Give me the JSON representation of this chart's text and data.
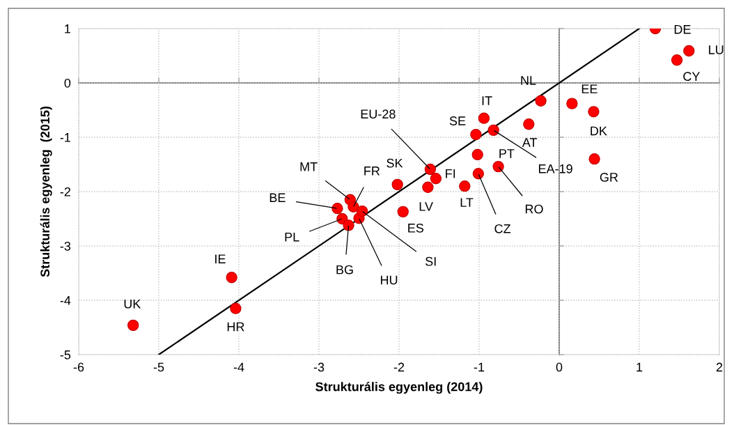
{
  "chart_data": {
    "type": "scatter",
    "xlabel": "Strukturális egyenleg (2014)",
    "ylabel": "Strukturális egyenleg  (2015)",
    "xlim": [
      -6,
      2
    ],
    "ylim": [
      -5,
      1
    ],
    "xticks": [
      -6,
      -5,
      -4,
      -3,
      -2,
      -1,
      0,
      1,
      2
    ],
    "yticks": [
      -5,
      -4,
      -3,
      -2,
      -1,
      0,
      1
    ],
    "grid": true,
    "marker": "circle",
    "series": [
      {
        "color": "#ff0000",
        "x": [
          1.2,
          1.62,
          1.47,
          -0.23,
          0.16,
          0.43,
          -0.94,
          -1.04,
          -0.82,
          -0.38,
          0.44,
          -1.61,
          -1.54,
          -2.02,
          -1.64,
          -1.18,
          -1.02,
          -0.76,
          -1.01,
          -1.95,
          -2.61,
          -2.57,
          -2.77,
          -2.71,
          -2.63,
          -2.5,
          -2.46,
          -5.32,
          -4.09,
          -4.04
        ],
        "values": [
          1.0,
          0.59,
          0.42,
          -0.33,
          -0.38,
          -0.53,
          -0.65,
          -0.95,
          -0.87,
          -0.76,
          -1.4,
          -1.59,
          -1.76,
          -1.87,
          -1.92,
          -1.9,
          -1.32,
          -1.54,
          -1.67,
          -2.37,
          -2.15,
          -2.28,
          -2.31,
          -2.5,
          -2.62,
          -2.49,
          -2.36,
          -4.46,
          -3.58,
          -4.15
        ]
      },
      {
        "type": "line",
        "color": "#000000",
        "line_style": "solid",
        "marker": "none",
        "x": [
          -5,
          1
        ],
        "values": [
          -5,
          1
        ]
      }
    ],
    "annotations": [
      {
        "text": "DE",
        "x": 1.2,
        "y": 1.0
      },
      {
        "text": "LU",
        "x": 1.62,
        "y": 0.59
      },
      {
        "text": "CY",
        "x": 1.47,
        "y": 0.42
      },
      {
        "text": "NL",
        "x": -0.23,
        "y": -0.33
      },
      {
        "text": "EE",
        "x": 0.16,
        "y": -0.38
      },
      {
        "text": "DK",
        "x": 0.43,
        "y": -0.53
      },
      {
        "text": "IT",
        "x": -0.94,
        "y": -0.65
      },
      {
        "text": "SE",
        "x": -1.04,
        "y": -0.95
      },
      {
        "text": "EA-19",
        "x": -0.82,
        "y": -0.87
      },
      {
        "text": "AT",
        "x": -0.38,
        "y": -0.76
      },
      {
        "text": "GR",
        "x": 0.44,
        "y": -1.4
      },
      {
        "text": "EU-28",
        "x": -1.61,
        "y": -1.59
      },
      {
        "text": "FI",
        "x": -1.54,
        "y": -1.76
      },
      {
        "text": "SK",
        "x": -2.02,
        "y": -1.87
      },
      {
        "text": "LV",
        "x": -1.64,
        "y": -1.92
      },
      {
        "text": "LT",
        "x": -1.18,
        "y": -1.9
      },
      {
        "text": "PT",
        "x": -1.02,
        "y": -1.32
      },
      {
        "text": "RO",
        "x": -0.76,
        "y": -1.54
      },
      {
        "text": "CZ",
        "x": -1.01,
        "y": -1.67
      },
      {
        "text": "ES",
        "x": -1.95,
        "y": -2.37
      },
      {
        "text": "MT",
        "x": -2.61,
        "y": -2.15
      },
      {
        "text": "FR",
        "x": -2.57,
        "y": -2.28
      },
      {
        "text": "BE",
        "x": -2.77,
        "y": -2.31
      },
      {
        "text": "PL",
        "x": -2.71,
        "y": -2.5
      },
      {
        "text": "BG",
        "x": -2.63,
        "y": -2.62
      },
      {
        "text": "HU",
        "x": -2.5,
        "y": -2.49
      },
      {
        "text": "SI",
        "x": -2.46,
        "y": -2.36
      },
      {
        "text": "UK",
        "x": -5.32,
        "y": -4.46
      },
      {
        "text": "IE",
        "x": -4.09,
        "y": -3.58
      },
      {
        "text": "HR",
        "x": -4.04,
        "y": -4.15
      }
    ]
  }
}
